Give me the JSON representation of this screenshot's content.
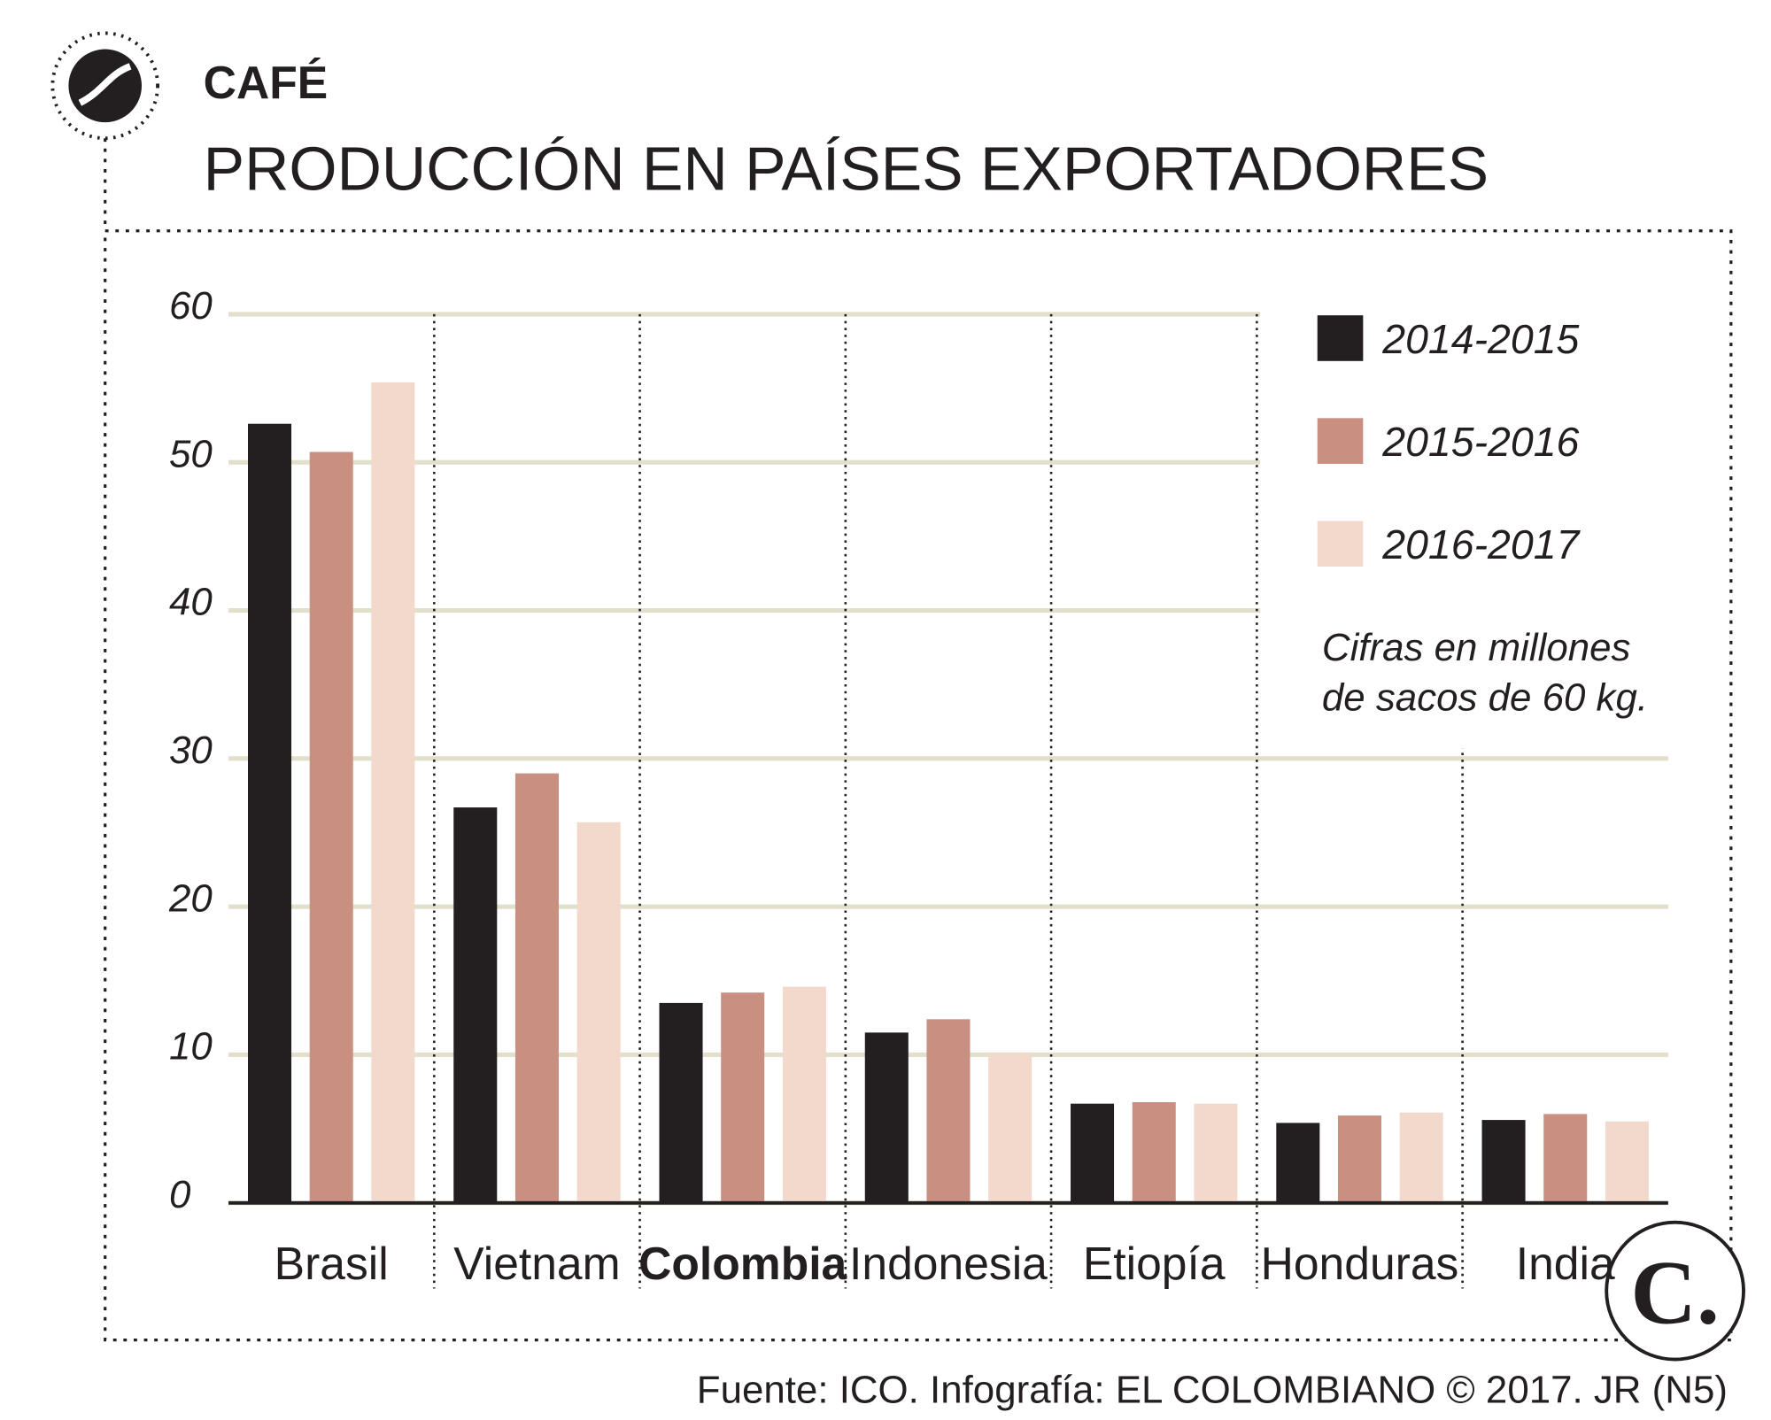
{
  "chart_data": {
    "type": "bar",
    "kicker": "CAFÉ",
    "title": "PRODUCCIÓN EN PAÍSES EXPORTADORES",
    "note": [
      "Cifras en millones",
      "de sacos de 60 kg."
    ],
    "source": "Fuente: ICO. Infografía: EL COLOMBIANO © 2017. JR (N5)",
    "logo": "C.",
    "categories": [
      "Brasil",
      "Vietnam",
      "Colombia",
      "Indonesia",
      "Etiopía",
      "Honduras",
      "India"
    ],
    "series": [
      {
        "name": "2014-2015",
        "color": "#231f20",
        "values": [
          52.6,
          26.7,
          13.5,
          11.5,
          6.7,
          5.4,
          5.6
        ]
      },
      {
        "name": "2015-2016",
        "color": "#c98f80",
        "values": [
          50.7,
          29.0,
          14.2,
          12.4,
          6.8,
          5.9,
          6.0
        ]
      },
      {
        "name": "2016-2017",
        "color": "#f2d9cc",
        "values": [
          55.4,
          25.7,
          14.6,
          10.1,
          6.7,
          6.1,
          5.5
        ]
      }
    ],
    "ylim": [
      0,
      60
    ],
    "yticks": [
      0,
      10,
      20,
      30,
      40,
      50,
      60
    ],
    "grid": true,
    "legend": "top-right"
  }
}
